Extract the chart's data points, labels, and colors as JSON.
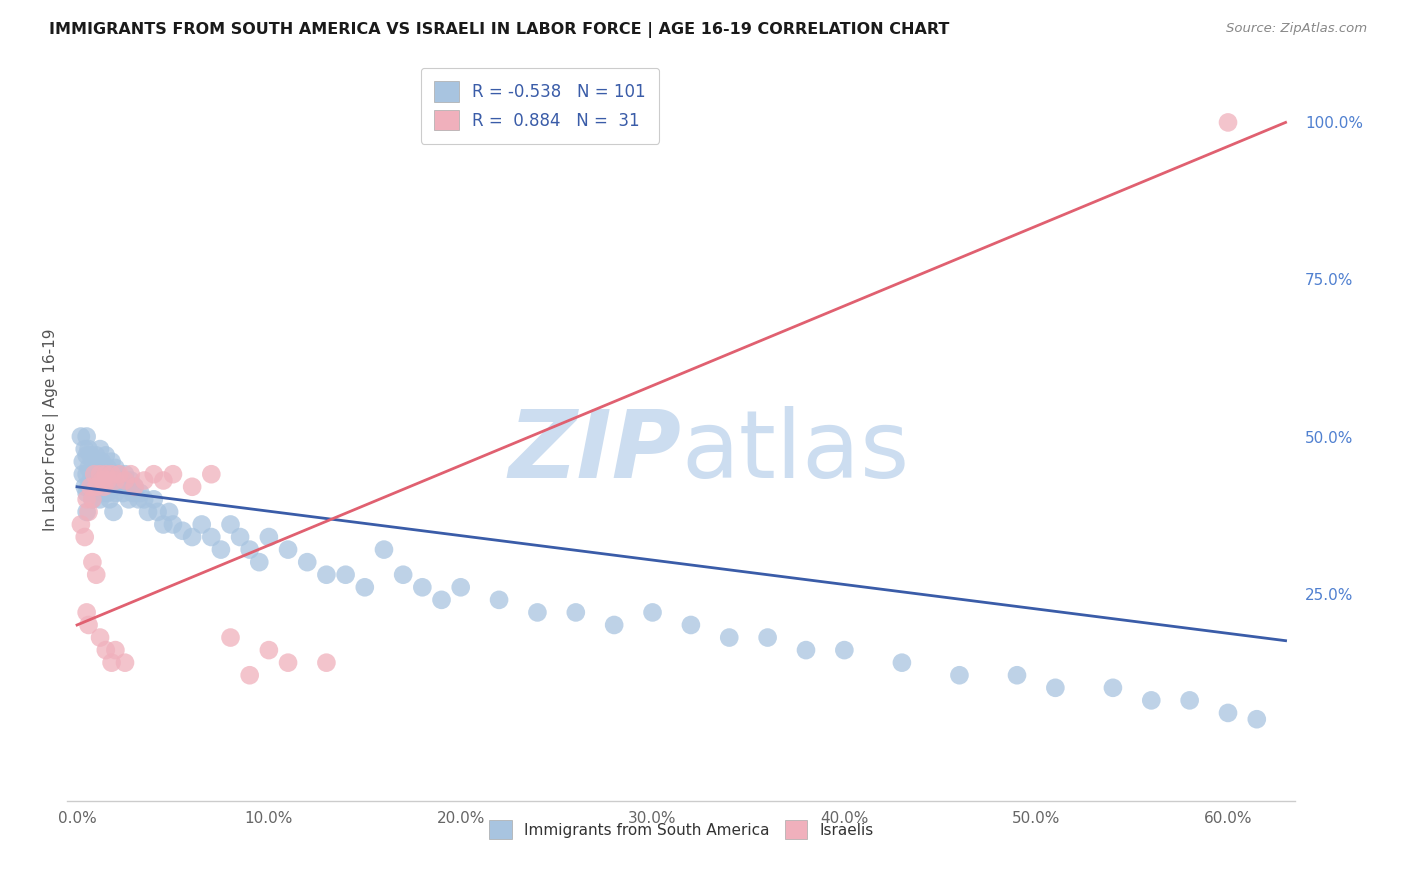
{
  "title": "IMMIGRANTS FROM SOUTH AMERICA VS ISRAELI IN LABOR FORCE | AGE 16-19 CORRELATION CHART",
  "source": "Source: ZipAtlas.com",
  "ylabel": "In Labor Force | Age 16-19",
  "xlabel_ticks": [
    "0.0%",
    "10.0%",
    "20.0%",
    "30.0%",
    "40.0%",
    "50.0%",
    "60.0%"
  ],
  "xlabel_vals": [
    0.0,
    0.1,
    0.2,
    0.3,
    0.4,
    0.5,
    0.6
  ],
  "ylabel_ticks_right": [
    "100.0%",
    "75.0%",
    "50.0%",
    "25.0%"
  ],
  "ylabel_vals_right": [
    1.0,
    0.75,
    0.5,
    0.25
  ],
  "xlim": [
    -0.005,
    0.635
  ],
  "ylim": [
    -0.08,
    1.1
  ],
  "blue_R": -0.538,
  "blue_N": 101,
  "pink_R": 0.884,
  "pink_N": 31,
  "blue_color": "#a8c4e0",
  "blue_line_color": "#3a5ca8",
  "pink_color": "#f0b0bc",
  "pink_line_color": "#e06070",
  "legend_label_blue": "Immigrants from South America",
  "legend_label_pink": "Israelis",
  "watermark_zip": "ZIP",
  "watermark_atlas": "atlas",
  "watermark_color": "#ccddf0",
  "blue_scatter_x": [
    0.002,
    0.003,
    0.003,
    0.004,
    0.004,
    0.005,
    0.005,
    0.005,
    0.005,
    0.005,
    0.006,
    0.006,
    0.006,
    0.007,
    0.007,
    0.008,
    0.008,
    0.008,
    0.009,
    0.009,
    0.01,
    0.01,
    0.01,
    0.011,
    0.011,
    0.012,
    0.012,
    0.012,
    0.013,
    0.013,
    0.014,
    0.014,
    0.015,
    0.015,
    0.016,
    0.016,
    0.017,
    0.017,
    0.018,
    0.018,
    0.019,
    0.02,
    0.02,
    0.021,
    0.022,
    0.023,
    0.024,
    0.025,
    0.026,
    0.027,
    0.028,
    0.029,
    0.03,
    0.032,
    0.033,
    0.035,
    0.037,
    0.04,
    0.042,
    0.045,
    0.048,
    0.05,
    0.055,
    0.06,
    0.065,
    0.07,
    0.075,
    0.08,
    0.085,
    0.09,
    0.095,
    0.1,
    0.11,
    0.12,
    0.13,
    0.14,
    0.15,
    0.16,
    0.17,
    0.18,
    0.19,
    0.2,
    0.22,
    0.24,
    0.26,
    0.28,
    0.3,
    0.32,
    0.34,
    0.36,
    0.38,
    0.4,
    0.43,
    0.46,
    0.49,
    0.51,
    0.54,
    0.56,
    0.58,
    0.6,
    0.615
  ],
  "blue_scatter_y": [
    0.5,
    0.46,
    0.44,
    0.48,
    0.42,
    0.5,
    0.47,
    0.44,
    0.41,
    0.38,
    0.48,
    0.45,
    0.42,
    0.47,
    0.43,
    0.46,
    0.43,
    0.4,
    0.45,
    0.42,
    0.47,
    0.44,
    0.41,
    0.46,
    0.42,
    0.48,
    0.44,
    0.4,
    0.46,
    0.42,
    0.45,
    0.41,
    0.47,
    0.43,
    0.45,
    0.41,
    0.44,
    0.4,
    0.46,
    0.42,
    0.38,
    0.45,
    0.41,
    0.44,
    0.42,
    0.43,
    0.41,
    0.44,
    0.42,
    0.4,
    0.43,
    0.41,
    0.42,
    0.4,
    0.41,
    0.4,
    0.38,
    0.4,
    0.38,
    0.36,
    0.38,
    0.36,
    0.35,
    0.34,
    0.36,
    0.34,
    0.32,
    0.36,
    0.34,
    0.32,
    0.3,
    0.34,
    0.32,
    0.3,
    0.28,
    0.28,
    0.26,
    0.32,
    0.28,
    0.26,
    0.24,
    0.26,
    0.24,
    0.22,
    0.22,
    0.2,
    0.22,
    0.2,
    0.18,
    0.18,
    0.16,
    0.16,
    0.14,
    0.12,
    0.12,
    0.1,
    0.1,
    0.08,
    0.08,
    0.06,
    0.05
  ],
  "pink_scatter_x": [
    0.002,
    0.004,
    0.005,
    0.006,
    0.007,
    0.008,
    0.009,
    0.01,
    0.012,
    0.013,
    0.014,
    0.015,
    0.016,
    0.018,
    0.02,
    0.022,
    0.025,
    0.028,
    0.03,
    0.035,
    0.04,
    0.045,
    0.05,
    0.06,
    0.07,
    0.08,
    0.09,
    0.1,
    0.11,
    0.13,
    0.6
  ],
  "pink_scatter_y": [
    0.36,
    0.34,
    0.4,
    0.38,
    0.42,
    0.4,
    0.44,
    0.42,
    0.44,
    0.43,
    0.42,
    0.44,
    0.43,
    0.44,
    0.43,
    0.44,
    0.43,
    0.44,
    0.42,
    0.43,
    0.44,
    0.43,
    0.44,
    0.42,
    0.44,
    0.18,
    0.12,
    0.16,
    0.14,
    0.14,
    1.0
  ],
  "pink_scatter_low_x": [
    0.005,
    0.006,
    0.008,
    0.01,
    0.012,
    0.015,
    0.018,
    0.02,
    0.025
  ],
  "pink_scatter_low_y": [
    0.22,
    0.2,
    0.3,
    0.28,
    0.18,
    0.16,
    0.14,
    0.16,
    0.14
  ],
  "blue_line_x": [
    0.0,
    0.63
  ],
  "blue_line_y": [
    0.42,
    0.175
  ],
  "pink_line_x": [
    0.0,
    0.63
  ],
  "pink_line_y": [
    0.2,
    1.0
  ],
  "grid_color": "#cccccc",
  "legend_R_color": "#3a5ca8",
  "legend_N_color": "#3a5ca8"
}
